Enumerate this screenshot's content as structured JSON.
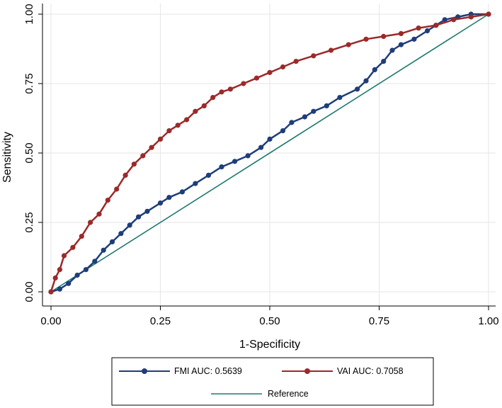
{
  "chart_data": {
    "type": "line",
    "title": "",
    "xlabel": "1-Specificity",
    "ylabel": "Sensitivity",
    "xlim": [
      0,
      1
    ],
    "ylim": [
      0,
      1
    ],
    "xticks": [
      "0.00",
      "0.25",
      "0.50",
      "0.75",
      "1.00"
    ],
    "yticks": [
      "0.00",
      "0.25",
      "0.50",
      "0.75",
      "1.00"
    ],
    "xtick_values": [
      0,
      0.25,
      0.5,
      0.75,
      1
    ],
    "ytick_values": [
      0,
      0.25,
      0.5,
      0.75,
      1
    ],
    "grid": true,
    "legend_position": "bottom",
    "series": [
      {
        "name": "FMI AUC: 0.5639",
        "color": "#1f3d7a",
        "marker": "circle",
        "x": [
          0,
          0.02,
          0.04,
          0.06,
          0.08,
          0.1,
          0.12,
          0.14,
          0.16,
          0.18,
          0.2,
          0.22,
          0.25,
          0.27,
          0.3,
          0.33,
          0.36,
          0.39,
          0.42,
          0.45,
          0.48,
          0.5,
          0.53,
          0.55,
          0.58,
          0.6,
          0.63,
          0.66,
          0.7,
          0.72,
          0.74,
          0.76,
          0.78,
          0.8,
          0.83,
          0.86,
          0.88,
          0.9,
          0.93,
          0.96,
          1.0
        ],
        "y": [
          0,
          0.01,
          0.03,
          0.06,
          0.08,
          0.11,
          0.15,
          0.18,
          0.21,
          0.24,
          0.27,
          0.29,
          0.32,
          0.34,
          0.36,
          0.39,
          0.42,
          0.45,
          0.47,
          0.49,
          0.52,
          0.55,
          0.58,
          0.61,
          0.63,
          0.65,
          0.67,
          0.7,
          0.73,
          0.76,
          0.8,
          0.83,
          0.87,
          0.89,
          0.91,
          0.94,
          0.96,
          0.98,
          0.99,
          1.0,
          1.0
        ]
      },
      {
        "name": "VAI AUC: 0.7058",
        "color": "#9b2a2a",
        "marker": "circle",
        "x": [
          0,
          0.01,
          0.02,
          0.03,
          0.05,
          0.07,
          0.09,
          0.11,
          0.13,
          0.15,
          0.17,
          0.19,
          0.21,
          0.23,
          0.25,
          0.27,
          0.29,
          0.31,
          0.33,
          0.35,
          0.37,
          0.39,
          0.41,
          0.44,
          0.47,
          0.5,
          0.53,
          0.56,
          0.6,
          0.64,
          0.68,
          0.72,
          0.76,
          0.8,
          0.84,
          0.88,
          0.92,
          0.96,
          1.0
        ],
        "y": [
          0,
          0.05,
          0.08,
          0.13,
          0.16,
          0.2,
          0.25,
          0.28,
          0.33,
          0.37,
          0.42,
          0.46,
          0.49,
          0.52,
          0.55,
          0.58,
          0.6,
          0.62,
          0.65,
          0.67,
          0.7,
          0.72,
          0.73,
          0.75,
          0.77,
          0.79,
          0.81,
          0.83,
          0.85,
          0.87,
          0.89,
          0.91,
          0.92,
          0.93,
          0.95,
          0.96,
          0.98,
          0.99,
          1.0
        ]
      },
      {
        "name": "Reference",
        "color": "#1e7a6e",
        "marker": "none",
        "x": [
          0,
          1
        ],
        "y": [
          0,
          1
        ]
      }
    ]
  }
}
